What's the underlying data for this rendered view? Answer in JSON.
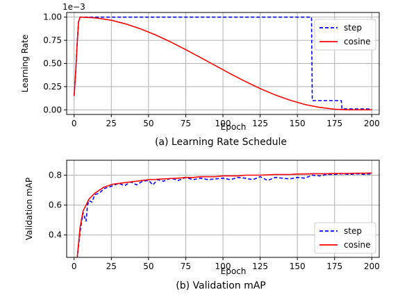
{
  "chart_data": [
    {
      "type": "line",
      "caption": "(a) Learning Rate Schedule",
      "xlabel": "Epoch",
      "ylabel": "Learning Rate",
      "y_multiplier_label": "1e−3",
      "xlim": [
        -5,
        205
      ],
      "ylim": [
        -0.05,
        1.05
      ],
      "xticks": [
        "0",
        "25",
        "50",
        "75",
        "100",
        "125",
        "150",
        "175",
        "200"
      ],
      "yticks": [
        "0.00",
        "0.25",
        "0.50",
        "0.75",
        "1.00"
      ],
      "grid": true,
      "legend_position": "top-right",
      "series": [
        {
          "name": "step",
          "style": "dashed",
          "color": "#0000ff",
          "x": [
            0,
            1,
            2,
            3,
            4,
            5,
            159.5,
            160,
            179.5,
            180,
            200
          ],
          "y": [
            0.15,
            0.4,
            0.7,
            0.95,
            1.0,
            1.0,
            1.0,
            0.1,
            0.1,
            0.01,
            0.01
          ]
        },
        {
          "name": "cosine",
          "style": "solid",
          "color": "#ff0000",
          "x": [
            0,
            1,
            2,
            3,
            4,
            5,
            15,
            25,
            35,
            45,
            55,
            65,
            75,
            85,
            95,
            105,
            115,
            125,
            135,
            145,
            155,
            165,
            175,
            185,
            195,
            200
          ],
          "y": [
            0.15,
            0.4,
            0.7,
            0.95,
            1.0,
            1.0,
            0.991,
            0.966,
            0.925,
            0.871,
            0.806,
            0.731,
            0.649,
            0.563,
            0.476,
            0.389,
            0.306,
            0.229,
            0.161,
            0.104,
            0.058,
            0.026,
            0.007,
            0.0,
            0.0,
            0.0
          ]
        }
      ]
    },
    {
      "type": "line",
      "caption": "(b) Validation mAP",
      "xlabel": "Epoch",
      "ylabel": "Validation mAP",
      "xlim": [
        -5,
        205
      ],
      "ylim": [
        0.25,
        0.9
      ],
      "xticks": [
        "0",
        "25",
        "50",
        "75",
        "100",
        "125",
        "150",
        "175",
        "200"
      ],
      "yticks": [
        "0.4",
        "0.6",
        "0.8"
      ],
      "grid": true,
      "legend_position": "bottom-right",
      "series": [
        {
          "name": "step",
          "style": "dashed",
          "color": "#0000ff",
          "x": [
            2,
            4,
            6,
            8,
            9,
            10,
            12,
            14,
            17,
            20,
            23,
            26,
            30,
            34,
            38,
            42,
            46,
            50,
            53,
            56,
            60,
            65,
            70,
            75,
            80,
            85,
            90,
            95,
            100,
            105,
            110,
            115,
            120,
            125,
            130,
            135,
            140,
            145,
            150,
            155,
            160,
            165,
            170,
            175,
            180,
            185,
            190,
            195,
            200
          ],
          "y": [
            0.24,
            0.42,
            0.55,
            0.49,
            0.6,
            0.63,
            0.62,
            0.67,
            0.68,
            0.71,
            0.72,
            0.73,
            0.745,
            0.73,
            0.755,
            0.735,
            0.76,
            0.765,
            0.735,
            0.77,
            0.76,
            0.78,
            0.765,
            0.785,
            0.77,
            0.78,
            0.77,
            0.775,
            0.78,
            0.77,
            0.785,
            0.78,
            0.77,
            0.79,
            0.765,
            0.785,
            0.78,
            0.775,
            0.785,
            0.78,
            0.8,
            0.795,
            0.805,
            0.805,
            0.81,
            0.805,
            0.81,
            0.805,
            0.81
          ]
        },
        {
          "name": "cosine",
          "style": "solid",
          "color": "#ff0000",
          "x": [
            2,
            4,
            6,
            8,
            10,
            12,
            14,
            17,
            20,
            23,
            26,
            30,
            34,
            38,
            42,
            46,
            50,
            55,
            60,
            65,
            70,
            75,
            80,
            85,
            90,
            95,
            100,
            105,
            110,
            115,
            120,
            125,
            130,
            135,
            140,
            145,
            150,
            155,
            160,
            165,
            170,
            175,
            180,
            185,
            190,
            195,
            200
          ],
          "y": [
            0.24,
            0.45,
            0.56,
            0.6,
            0.64,
            0.66,
            0.68,
            0.7,
            0.72,
            0.73,
            0.74,
            0.745,
            0.75,
            0.755,
            0.76,
            0.765,
            0.77,
            0.772,
            0.775,
            0.778,
            0.78,
            0.785,
            0.785,
            0.79,
            0.79,
            0.79,
            0.795,
            0.795,
            0.795,
            0.8,
            0.8,
            0.8,
            0.802,
            0.805,
            0.805,
            0.805,
            0.808,
            0.808,
            0.81,
            0.81,
            0.81,
            0.812,
            0.812,
            0.812,
            0.813,
            0.813,
            0.815
          ]
        }
      ]
    }
  ]
}
